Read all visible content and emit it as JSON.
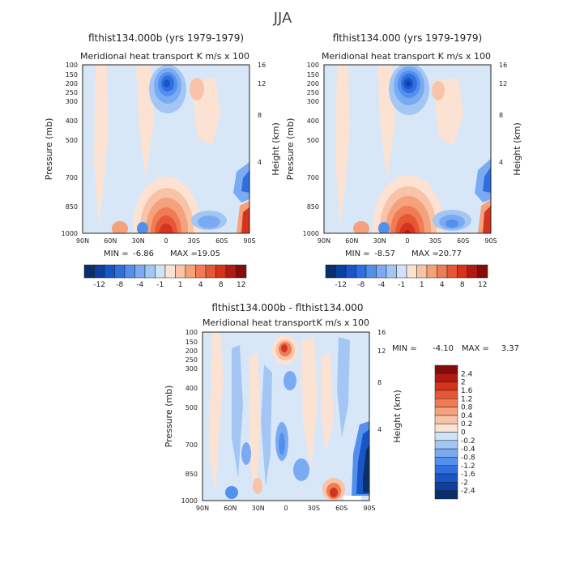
{
  "figure": {
    "season": "JJA",
    "palette": {
      "neg": [
        "#08306b",
        "#0c3fa0",
        "#1a55c8",
        "#2f6fe0",
        "#5290ec",
        "#7aabf2",
        "#a3c6f5",
        "#cfe2f8"
      ],
      "pos": [
        "#fbe2d2",
        "#f8c3a6",
        "#f5a27c",
        "#f07c55",
        "#e75635",
        "#d4331d",
        "#b31b12",
        "#840c0b"
      ],
      "zero": "#d8e7f7"
    }
  },
  "chart_data": [
    {
      "type": "heatmap",
      "title": "flthist134.000b (yrs 1979-1979)",
      "subtitle": "Meridional heat transport",
      "units": "K m/s x 100",
      "xlabel": "",
      "ylabel": "Pressure (mb)",
      "ylabel_right": "Height (km)",
      "x_ticks": [
        "90N",
        "60N",
        "30N",
        "0",
        "30S",
        "60S",
        "90S"
      ],
      "y_ticks": [
        "100",
        "150",
        "200",
        "250",
        "300",
        "400",
        "500",
        "700",
        "850",
        "1000"
      ],
      "y_ticks_right": [
        "16",
        "12",
        "8",
        "4"
      ],
      "min_label": "MIN =",
      "min_value": "-6.86",
      "max_label": "MAX =",
      "max_value": "19.05",
      "colorbar_labels": [
        "-12",
        "-8",
        "-4",
        "-1",
        "1",
        "4",
        "8",
        "12"
      ],
      "features": [
        {
          "lat": 0,
          "p": 940,
          "value": 19
        },
        {
          "lat": -30,
          "p": 880,
          "value": -5
        },
        {
          "lat": 0,
          "p": 200,
          "value": -6
        },
        {
          "lat": -85,
          "p": 850,
          "value": 12
        },
        {
          "lat": -85,
          "p": 620,
          "value": -4
        }
      ]
    },
    {
      "type": "heatmap",
      "title": "flthist134.000 (yrs 1979-1979)",
      "subtitle": "Meridional heat transport",
      "units": "K m/s x 100",
      "xlabel": "",
      "ylabel": "Pressure (mb)",
      "ylabel_right": "Height (km)",
      "x_ticks": [
        "90N",
        "60N",
        "30N",
        "0",
        "30S",
        "60S",
        "90S"
      ],
      "y_ticks": [
        "100",
        "150",
        "200",
        "250",
        "300",
        "400",
        "500",
        "700",
        "850",
        "1000"
      ],
      "y_ticks_right": [
        "16",
        "12",
        "8",
        "4"
      ],
      "min_label": "MIN =",
      "min_value": "-8.57",
      "max_label": "MAX =",
      "max_value": "20.77",
      "colorbar_labels": [
        "-12",
        "-8",
        "-4",
        "-1",
        "1",
        "4",
        "8",
        "12"
      ],
      "features": [
        {
          "lat": 0,
          "p": 940,
          "value": 20
        },
        {
          "lat": -30,
          "p": 880,
          "value": -6
        },
        {
          "lat": 0,
          "p": 200,
          "value": -8
        },
        {
          "lat": -85,
          "p": 850,
          "value": 13
        },
        {
          "lat": -85,
          "p": 620,
          "value": -4
        }
      ]
    },
    {
      "type": "heatmap",
      "title": "flthist134.000b - flthist134.000",
      "subtitle": "Meridional heat transport",
      "units": "K m/s x 100",
      "xlabel": "",
      "ylabel": "Pressure (mb)",
      "ylabel_right": "Height (km)",
      "x_ticks": [
        "90N",
        "60N",
        "30N",
        "0",
        "30S",
        "60S",
        "90S"
      ],
      "y_ticks": [
        "100",
        "150",
        "200",
        "250",
        "300",
        "400",
        "500",
        "700",
        "850",
        "1000"
      ],
      "y_ticks_right": [
        "16",
        "12",
        "8",
        "4"
      ],
      "min_label": "MIN =",
      "min_value": "-4.10",
      "max_label": "MAX =",
      "max_value": "3.37",
      "colorbar_labels": [
        "2.4",
        "2",
        "1.6",
        "1.2",
        "0.8",
        "0.4",
        "0.2",
        "0",
        "-0.2",
        "-0.4",
        "-0.8",
        "-1.2",
        "-1.6",
        "-2",
        "-2.4"
      ],
      "features": [
        {
          "lat": -5,
          "p": 200,
          "value": 2.4
        },
        {
          "lat": -60,
          "p": 950,
          "value": 3.3
        },
        {
          "lat": -85,
          "p": 800,
          "value": -4
        },
        {
          "lat": 30,
          "p": 750,
          "value": -1.2
        }
      ]
    }
  ]
}
